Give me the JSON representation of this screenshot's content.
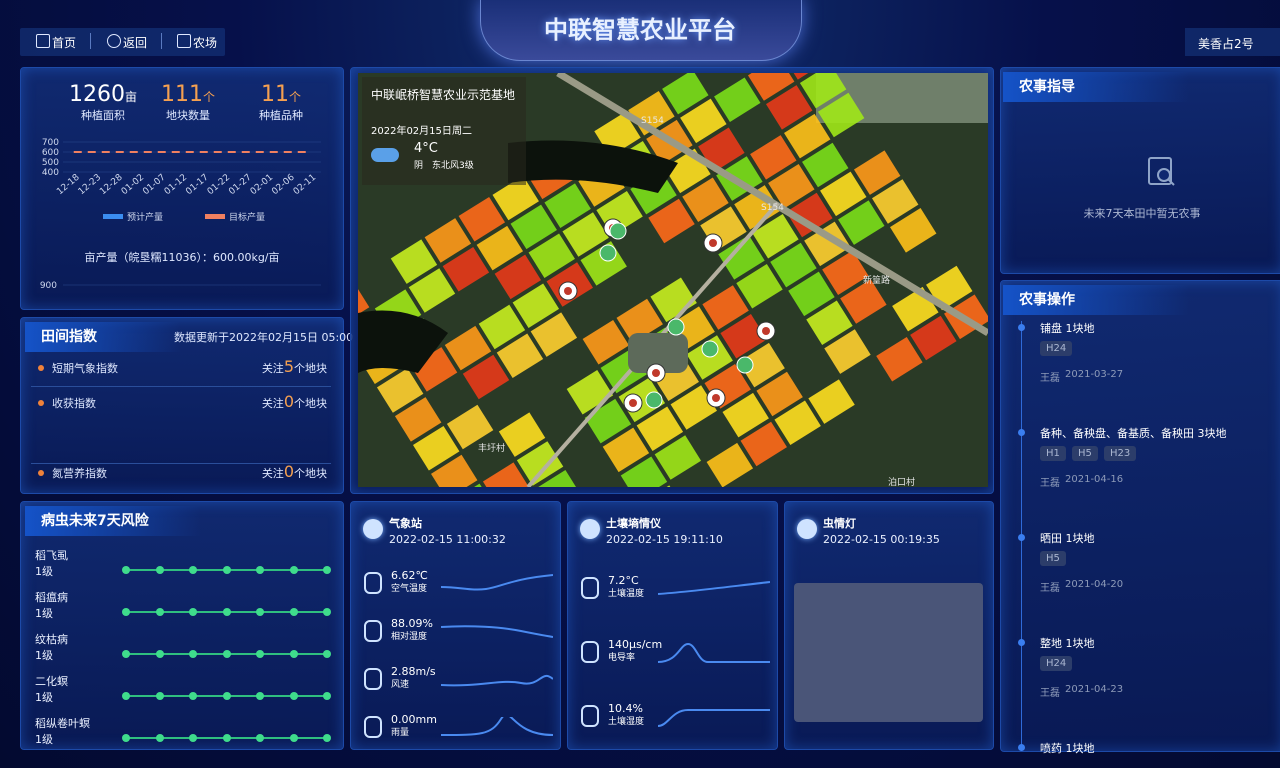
{
  "header": {
    "title": "中联智慧农业平台",
    "nav": [
      "首页",
      "返回",
      "农场"
    ],
    "farm": "美香占2号"
  },
  "overview": {
    "stats": [
      {
        "value": 1260,
        "unit": "亩",
        "label": "种植面积"
      },
      {
        "value": 111,
        "unit": "个",
        "label": "地块数量"
      },
      {
        "value": 11,
        "unit": "个",
        "label": "种植品种"
      }
    ],
    "chart_data": {
      "type": "line",
      "categories": [
        "12-18",
        "12-23",
        "12-28",
        "01-02",
        "01-07",
        "01-12",
        "01-17",
        "01-22",
        "01-27",
        "02-01",
        "02-06",
        "02-11"
      ],
      "series": [
        {
          "name": "预计产量",
          "color": "#3b8df0",
          "values": [
            null,
            null,
            null,
            null,
            null,
            null,
            null,
            null,
            null,
            null,
            null,
            null
          ]
        },
        {
          "name": "目标产量",
          "color": "#f08060",
          "values": [
            600,
            600,
            600,
            600,
            600,
            600,
            600,
            600,
            600,
            600,
            600,
            600
          ]
        }
      ],
      "ylim": [
        400,
        700
      ],
      "yticks": [
        400,
        500,
        600,
        700
      ]
    },
    "yield_note": "亩产量（皖垦糯11036）：600.00kg/亩",
    "next_chart_tick": 900
  },
  "field_index": {
    "title": "田间指数",
    "updated": "数据更新于2022年02月15日 05:00",
    "items": [
      {
        "name": "短期气象指数",
        "prefix": "关注",
        "count": 5,
        "suffix": "个地块"
      },
      {
        "name": "收获指数",
        "prefix": "关注",
        "count": 0,
        "suffix": "个地块"
      },
      {
        "name": "氮营养指数",
        "prefix": "关注",
        "count": 0,
        "suffix": "个地块"
      }
    ]
  },
  "pest_risk": {
    "title": "病虫未来7天风险",
    "items": [
      {
        "name": "稻飞虱",
        "level": "1级"
      },
      {
        "name": "稻瘟病",
        "level": "1级"
      },
      {
        "name": "纹枯病",
        "level": "1级"
      },
      {
        "name": "二化螟",
        "level": "1级"
      },
      {
        "name": "稻纵卷叶螟",
        "level": "1级"
      }
    ]
  },
  "map": {
    "weather": {
      "base": "中联岷桥智慧农业示范基地",
      "date": "2022年02月15日",
      "weekday": "周二",
      "temp": "4°C",
      "condition": "阴",
      "wind": "东北风3级"
    },
    "labels": [
      "S154",
      "S154",
      "新篁路",
      "丰圩村",
      "泊口村"
    ]
  },
  "sensors": [
    {
      "title": "气象站",
      "time": "2022-02-15 11:00:32",
      "metrics": [
        {
          "value": "6.62℃",
          "label": "空气温度"
        },
        {
          "value": "88.09%",
          "label": "相对湿度"
        },
        {
          "value": "2.88m/s",
          "label": "风速"
        },
        {
          "value": "0.00mm",
          "label": "雨量"
        }
      ]
    },
    {
      "title": "土壤墒情仪",
      "time": "2022-02-15 19:11:10",
      "metrics": [
        {
          "value": "7.2°C",
          "label": "土壤温度"
        },
        {
          "value": "140μs/cm",
          "label": "电导率"
        },
        {
          "value": "10.4%",
          "label": "土壤湿度"
        }
      ]
    },
    {
      "title": "虫情灯",
      "time": "2022-02-15 00:19:35",
      "metrics": []
    }
  ],
  "guidance": {
    "title": "农事指导",
    "empty": "未来7天本田中暂无农事"
  },
  "operations": {
    "title": "农事操作",
    "items": [
      {
        "task": "铺盘 1块地",
        "tags": [
          "H24"
        ],
        "person": "王磊",
        "date": "2021-03-27"
      },
      {
        "task": "备种、备秧盘、备基质、备秧田 3块地",
        "tags": [
          "H1",
          "H5",
          "H23"
        ],
        "person": "王磊",
        "date": "2021-04-16"
      },
      {
        "task": "晒田 1块地",
        "tags": [
          "H5"
        ],
        "person": "王磊",
        "date": "2021-04-20"
      },
      {
        "task": "整地 1块地",
        "tags": [
          "H24"
        ],
        "person": "王磊",
        "date": "2021-04-23"
      },
      {
        "task": "喷药 1块地",
        "tags": []
      }
    ]
  }
}
